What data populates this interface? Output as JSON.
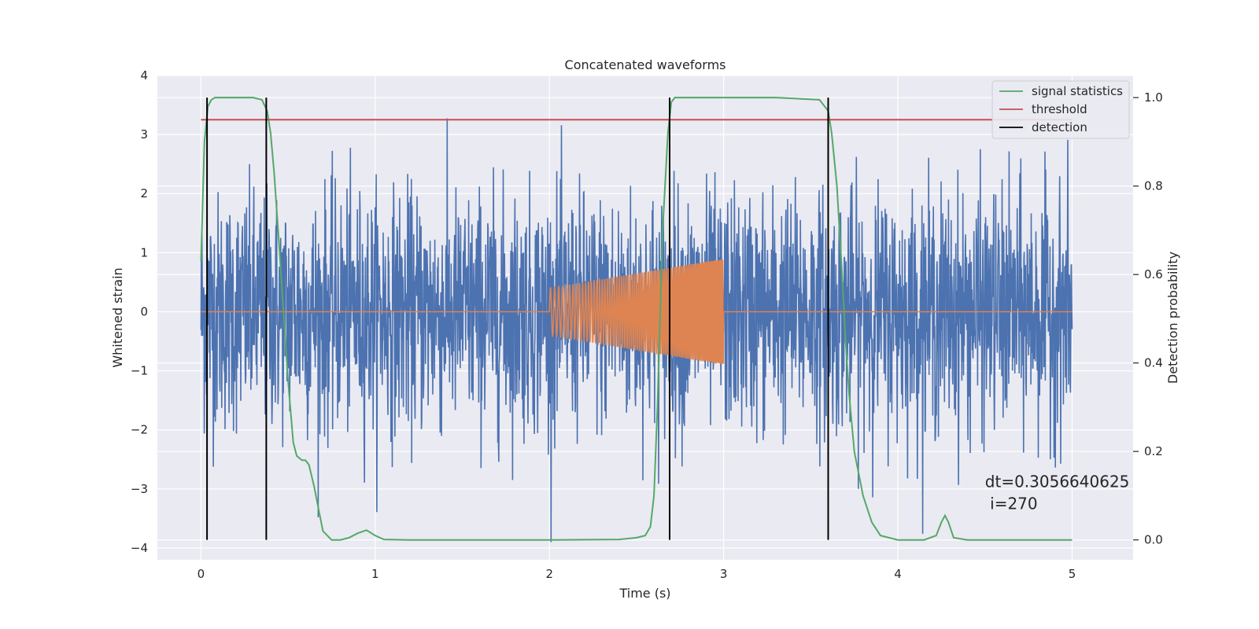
{
  "chart_data": {
    "type": "line",
    "title": "Concatenated waveforms",
    "xlabel": "Time (s)",
    "ylabel": "Whitened strain",
    "y2label": "Detection probability",
    "xlim": [
      -0.25,
      5.35
    ],
    "ylim": [
      -4.2,
      4.0
    ],
    "y2lim": [
      -0.045,
      1.05
    ],
    "xticks": [
      "0",
      "1",
      "2",
      "3",
      "4",
      "5"
    ],
    "yticks": [
      "4",
      "3",
      "2",
      "1",
      "0",
      "−1",
      "−2",
      "−3",
      "−4"
    ],
    "y2ticks": [
      "1.0",
      "0.8",
      "0.6",
      "0.4",
      "0.2",
      "0.0"
    ],
    "grid": true,
    "legend": {
      "position": "top-right",
      "entries": [
        {
          "label": "signal statistics",
          "color": "#55a868"
        },
        {
          "label": "threshold",
          "color": "#c44e52"
        },
        {
          "label": "detection",
          "color": "#000000"
        }
      ]
    },
    "series": [
      {
        "name": "",
        "axis": "left",
        "color": "#4c72b0",
        "kind": "noise",
        "x_range": [
          0,
          5
        ],
        "amplitude_std": 1.0
      },
      {
        "name": "",
        "axis": "left",
        "color": "#dd8452",
        "kind": "chirp",
        "x_range": [
          2.0,
          3.0
        ],
        "start_amplitude": 0.4,
        "end_amplitude": 0.9
      },
      {
        "name": "signal statistics",
        "axis": "right",
        "color": "#55a868",
        "x": [
          0,
          0.02,
          0.04,
          0.06,
          0.08,
          0.1,
          0.15,
          0.2,
          0.25,
          0.3,
          0.35,
          0.38,
          0.4,
          0.42,
          0.45,
          0.48,
          0.5,
          0.53,
          0.55,
          0.58,
          0.6,
          0.62,
          0.65,
          0.68,
          0.7,
          0.75,
          0.8,
          0.85,
          0.9,
          0.95,
          1.0,
          1.05,
          1.2,
          1.5,
          2.0,
          2.4,
          2.5,
          2.55,
          2.58,
          2.6,
          2.62,
          2.65,
          2.68,
          2.7,
          2.72,
          2.75,
          2.8,
          3.0,
          3.3,
          3.55,
          3.6,
          3.62,
          3.65,
          3.68,
          3.7,
          3.72,
          3.75,
          3.8,
          3.85,
          3.9,
          4.0,
          4.15,
          4.22,
          4.25,
          4.27,
          4.29,
          4.32,
          4.4,
          4.7,
          5.0
        ],
        "y": [
          0.63,
          0.9,
          0.98,
          0.995,
          1.0,
          1.0,
          1.0,
          1.0,
          1.0,
          1.0,
          0.995,
          0.97,
          0.92,
          0.83,
          0.66,
          0.48,
          0.36,
          0.22,
          0.19,
          0.18,
          0.18,
          0.17,
          0.12,
          0.06,
          0.02,
          0.0,
          0.0,
          0.005,
          0.015,
          0.022,
          0.01,
          0.001,
          0.0,
          0.0,
          0.0,
          0.001,
          0.005,
          0.01,
          0.03,
          0.1,
          0.3,
          0.7,
          0.92,
          0.99,
          1.0,
          1.0,
          1.0,
          1.0,
          1.0,
          0.995,
          0.97,
          0.92,
          0.8,
          0.6,
          0.45,
          0.33,
          0.2,
          0.1,
          0.04,
          0.01,
          0.0,
          0.0,
          0.01,
          0.04,
          0.055,
          0.04,
          0.005,
          0.0,
          0.0,
          0.0
        ]
      },
      {
        "name": "threshold",
        "axis": "right",
        "color": "#c44e52",
        "x": [
          0,
          5
        ],
        "y": [
          0.95,
          0.95
        ]
      },
      {
        "name": "detection",
        "axis": "right",
        "color": "#000000",
        "kind": "vlines",
        "x": [
          0.035,
          0.375,
          2.69,
          3.6
        ],
        "y_range": [
          0,
          1.0
        ]
      }
    ],
    "annotation": {
      "line1": "dt=0.3056640625",
      "line2": " i=270",
      "x": 4.5,
      "y": -3.1
    }
  }
}
